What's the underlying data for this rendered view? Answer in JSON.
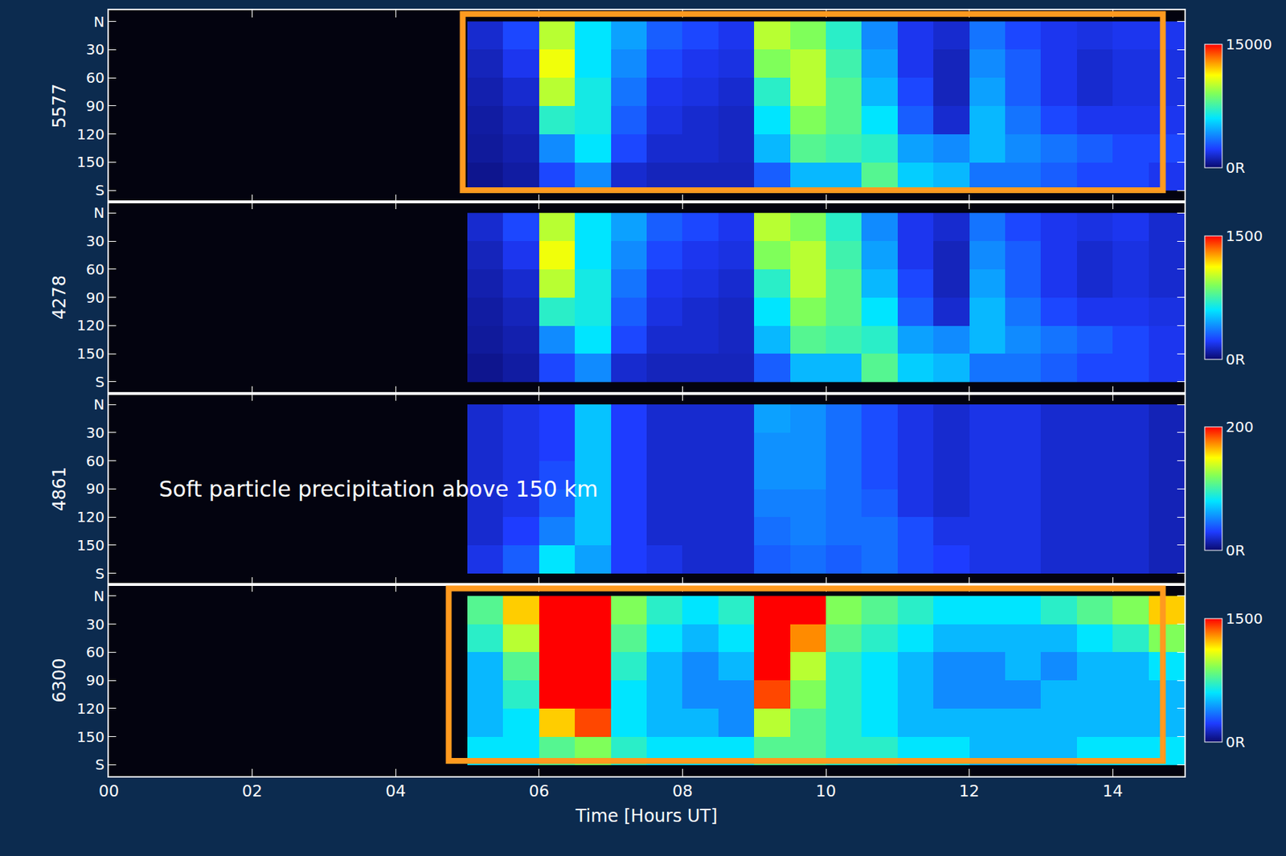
{
  "chart_data": [
    {
      "type": "heatmap",
      "ylabel": "5577",
      "tick_labels": "y",
      "xlim": [
        0,
        15
      ],
      "xticks": [
        {
          "value": 0,
          "label": "00"
        },
        {
          "value": 2,
          "label": "02"
        },
        {
          "value": 4,
          "label": "04"
        },
        {
          "value": 6,
          "label": "06"
        },
        {
          "value": 8,
          "label": "08"
        },
        10,
        12,
        14
      ],
      "ylim": [
        192,
        -12
      ],
      "yticks": [
        {
          "value": 0,
          "label": "N"
        },
        30,
        60,
        90,
        120,
        150,
        {
          "value": 180,
          "label": "S"
        }
      ],
      "x": [
        0.25,
        0.75,
        1.25,
        1.75,
        2.25,
        2.75,
        3.25,
        3.75,
        4.25,
        4.75,
        5.25,
        5.75,
        6.25,
        6.75,
        7.25,
        7.75,
        8.25,
        8.75,
        9.25,
        9.75,
        10.25,
        10.75,
        11.25,
        11.75,
        12.25,
        12.75,
        13.25,
        13.75,
        14.25,
        14.75
      ],
      "y": [
        15,
        45,
        75,
        105,
        135,
        165
      ],
      "z": [
        [
          null,
          null,
          null,
          null,
          null,
          null,
          null,
          null,
          null,
          null,
          1500,
          2500,
          10000,
          6000,
          4500,
          3000,
          2500,
          2000,
          10000,
          9000,
          7000,
          4000,
          2000,
          1500,
          3500,
          2500,
          2000,
          1800,
          2000,
          2000
        ],
        [
          null,
          null,
          null,
          null,
          null,
          null,
          null,
          null,
          null,
          null,
          1200,
          2000,
          11000,
          6000,
          4000,
          2500,
          2000,
          1800,
          9000,
          10000,
          7500,
          4500,
          2000,
          1200,
          4000,
          3000,
          2000,
          1500,
          1800,
          1800
        ],
        [
          null,
          null,
          null,
          null,
          null,
          null,
          null,
          null,
          null,
          null,
          1000,
          1500,
          10000,
          6500,
          3500,
          2000,
          1800,
          1500,
          7000,
          10000,
          8000,
          5000,
          2500,
          1200,
          4500,
          3000,
          2000,
          1500,
          1800,
          1800
        ],
        [
          null,
          null,
          null,
          null,
          null,
          null,
          null,
          null,
          null,
          null,
          800,
          1200,
          7000,
          6500,
          3000,
          1800,
          1500,
          1300,
          6000,
          9000,
          8000,
          6000,
          3000,
          1500,
          5000,
          3500,
          2500,
          2000,
          2000,
          2000
        ],
        [
          null,
          null,
          null,
          null,
          null,
          null,
          null,
          null,
          null,
          null,
          700,
          1000,
          4000,
          6000,
          2500,
          1500,
          1500,
          1300,
          5000,
          8000,
          7500,
          7000,
          4500,
          4000,
          5000,
          4000,
          3500,
          3000,
          2500,
          2500
        ],
        [
          null,
          null,
          null,
          null,
          null,
          null,
          null,
          null,
          null,
          null,
          500,
          800,
          2500,
          4000,
          1500,
          1200,
          1200,
          1200,
          3000,
          5000,
          5000,
          8000,
          5500,
          5000,
          3500,
          3500,
          3000,
          2500,
          2500,
          2000
        ]
      ],
      "colorbar": {
        "range": [
          0,
          15000
        ],
        "ticks": [
          {
            "value": 0,
            "label": "0R"
          },
          15000
        ]
      }
    },
    {
      "type": "heatmap",
      "ylabel": "4278",
      "tick_labels": "y",
      "xlim": [
        0,
        15
      ],
      "xticks": [
        {
          "value": 0,
          "label": "00"
        },
        {
          "value": 2,
          "label": "02"
        },
        {
          "value": 4,
          "label": "04"
        },
        {
          "value": 6,
          "label": "06"
        },
        {
          "value": 8,
          "label": "08"
        },
        10,
        12,
        14
      ],
      "ylim": [
        192,
        -12
      ],
      "yticks": [
        {
          "value": 0,
          "label": "N"
        },
        30,
        60,
        90,
        120,
        150,
        {
          "value": 180,
          "label": "S"
        }
      ],
      "x": [
        0.25,
        0.75,
        1.25,
        1.75,
        2.25,
        2.75,
        3.25,
        3.75,
        4.25,
        4.75,
        5.25,
        5.75,
        6.25,
        6.75,
        7.25,
        7.75,
        8.25,
        8.75,
        9.25,
        9.75,
        10.25,
        10.75,
        11.25,
        11.75,
        12.25,
        12.75,
        13.25,
        13.75,
        14.25,
        14.75
      ],
      "y": [
        15,
        45,
        75,
        105,
        135,
        165
      ],
      "z": [
        [
          null,
          null,
          null,
          null,
          null,
          null,
          null,
          null,
          null,
          null,
          150,
          250,
          1000,
          600,
          450,
          300,
          250,
          200,
          1000,
          900,
          700,
          400,
          200,
          150,
          350,
          250,
          200,
          180,
          200,
          150
        ],
        [
          null,
          null,
          null,
          null,
          null,
          null,
          null,
          null,
          null,
          null,
          120,
          200,
          1100,
          600,
          400,
          250,
          200,
          180,
          900,
          1000,
          750,
          450,
          200,
          120,
          400,
          300,
          200,
          150,
          180,
          150
        ],
        [
          null,
          null,
          null,
          null,
          null,
          null,
          null,
          null,
          null,
          null,
          100,
          150,
          1000,
          650,
          350,
          200,
          180,
          150,
          700,
          1000,
          800,
          500,
          250,
          120,
          450,
          300,
          200,
          150,
          180,
          150
        ],
        [
          null,
          null,
          null,
          null,
          null,
          null,
          null,
          null,
          null,
          null,
          80,
          120,
          700,
          650,
          300,
          180,
          150,
          130,
          600,
          900,
          800,
          600,
          300,
          150,
          500,
          350,
          250,
          200,
          200,
          180
        ],
        [
          null,
          null,
          null,
          null,
          null,
          null,
          null,
          null,
          null,
          null,
          70,
          100,
          400,
          600,
          250,
          150,
          150,
          130,
          500,
          800,
          750,
          700,
          450,
          400,
          500,
          400,
          350,
          300,
          250,
          200
        ],
        [
          null,
          null,
          null,
          null,
          null,
          null,
          null,
          null,
          null,
          null,
          50,
          80,
          250,
          400,
          150,
          120,
          120,
          120,
          300,
          500,
          500,
          800,
          550,
          500,
          350,
          350,
          300,
          250,
          250,
          200
        ]
      ],
      "colorbar": {
        "range": [
          0,
          1500
        ],
        "ticks": [
          {
            "value": 0,
            "label": "0R"
          },
          1500
        ]
      }
    },
    {
      "type": "heatmap",
      "ylabel": "4861",
      "tick_labels": "y",
      "annotations": [
        "Soft particle precipitation above 150 km"
      ],
      "xlim": [
        0,
        15
      ],
      "xticks": [
        {
          "value": 0,
          "label": "00"
        },
        {
          "value": 2,
          "label": "02"
        },
        {
          "value": 4,
          "label": "04"
        },
        {
          "value": 6,
          "label": "06"
        },
        {
          "value": 8,
          "label": "08"
        },
        10,
        12,
        14
      ],
      "ylim": [
        192,
        -12
      ],
      "yticks": [
        {
          "value": 0,
          "label": "N"
        },
        30,
        60,
        90,
        120,
        150,
        {
          "value": 180,
          "label": "S"
        }
      ],
      "x": [
        0.25,
        0.75,
        1.25,
        1.75,
        2.25,
        2.75,
        3.25,
        3.75,
        4.25,
        4.75,
        5.25,
        5.75,
        6.25,
        6.75,
        7.25,
        7.75,
        8.25,
        8.75,
        9.25,
        9.75,
        10.25,
        10.75,
        11.25,
        11.75,
        12.25,
        12.75,
        13.25,
        13.75,
        14.25,
        14.75
      ],
      "y": [
        15,
        45,
        75,
        105,
        135,
        165
      ],
      "z": [
        [
          null,
          null,
          null,
          null,
          null,
          null,
          null,
          null,
          null,
          null,
          20,
          25,
          30,
          70,
          30,
          20,
          20,
          20,
          60,
          55,
          45,
          35,
          25,
          20,
          25,
          25,
          20,
          20,
          20,
          15
        ],
        [
          null,
          null,
          null,
          null,
          null,
          null,
          null,
          null,
          null,
          null,
          20,
          25,
          30,
          70,
          30,
          20,
          20,
          20,
          55,
          55,
          45,
          35,
          25,
          20,
          25,
          25,
          20,
          20,
          20,
          15
        ],
        [
          null,
          null,
          null,
          null,
          null,
          null,
          null,
          null,
          null,
          null,
          20,
          25,
          35,
          70,
          30,
          20,
          20,
          20,
          55,
          55,
          45,
          35,
          25,
          20,
          25,
          25,
          20,
          20,
          20,
          15
        ],
        [
          null,
          null,
          null,
          null,
          null,
          null,
          null,
          null,
          null,
          null,
          20,
          25,
          40,
          70,
          30,
          20,
          20,
          20,
          50,
          50,
          45,
          40,
          25,
          20,
          25,
          25,
          20,
          20,
          20,
          15
        ],
        [
          null,
          null,
          null,
          null,
          null,
          null,
          null,
          null,
          null,
          null,
          20,
          30,
          50,
          70,
          30,
          20,
          20,
          20,
          45,
          50,
          45,
          45,
          35,
          25,
          25,
          25,
          20,
          20,
          20,
          15
        ],
        [
          null,
          null,
          null,
          null,
          null,
          null,
          null,
          null,
          null,
          null,
          25,
          40,
          80,
          60,
          30,
          25,
          20,
          20,
          40,
          45,
          40,
          45,
          35,
          30,
          25,
          25,
          20,
          20,
          20,
          15
        ]
      ],
      "colorbar": {
        "range": [
          0,
          200
        ],
        "ticks": [
          {
            "value": 0,
            "label": "0R"
          },
          200
        ]
      }
    },
    {
      "type": "heatmap",
      "ylabel": "6300",
      "xlabel": "Time [Hours UT]",
      "xlim": [
        0,
        15
      ],
      "xticks": [
        {
          "value": 0,
          "label": "00"
        },
        {
          "value": 2,
          "label": "02"
        },
        {
          "value": 4,
          "label": "04"
        },
        {
          "value": 6,
          "label": "06"
        },
        {
          "value": 8,
          "label": "08"
        },
        10,
        12,
        14
      ],
      "ylim": [
        192,
        -12
      ],
      "yticks": [
        {
          "value": 0,
          "label": "N"
        },
        30,
        60,
        90,
        120,
        150,
        {
          "value": 180,
          "label": "S"
        }
      ],
      "x": [
        0.25,
        0.75,
        1.25,
        1.75,
        2.25,
        2.75,
        3.25,
        3.75,
        4.25,
        4.75,
        5.25,
        5.75,
        6.25,
        6.75,
        7.25,
        7.75,
        8.25,
        8.75,
        9.25,
        9.75,
        10.25,
        10.75,
        11.25,
        11.75,
        12.25,
        12.75,
        13.25,
        13.75,
        14.25,
        14.75
      ],
      "y": [
        15,
        45,
        75,
        105,
        135,
        165
      ],
      "z": [
        [
          null,
          null,
          null,
          null,
          null,
          null,
          null,
          null,
          null,
          null,
          800,
          1200,
          1600,
          1500,
          900,
          700,
          600,
          700,
          1600,
          1500,
          900,
          800,
          700,
          600,
          600,
          600,
          700,
          800,
          900,
          1200
        ],
        [
          null,
          null,
          null,
          null,
          null,
          null,
          null,
          null,
          null,
          null,
          700,
          1000,
          1600,
          1600,
          800,
          600,
          500,
          600,
          1600,
          1300,
          800,
          700,
          600,
          500,
          500,
          500,
          500,
          600,
          700,
          900
        ],
        [
          null,
          null,
          null,
          null,
          null,
          null,
          null,
          null,
          null,
          null,
          500,
          800,
          1600,
          1600,
          700,
          500,
          400,
          500,
          1600,
          1000,
          700,
          600,
          500,
          400,
          400,
          500,
          400,
          500,
          500,
          600
        ],
        [
          null,
          null,
          null,
          null,
          null,
          null,
          null,
          null,
          null,
          null,
          500,
          700,
          1500,
          1600,
          600,
          500,
          400,
          400,
          1400,
          900,
          700,
          600,
          500,
          400,
          400,
          400,
          500,
          500,
          500,
          500
        ],
        [
          null,
          null,
          null,
          null,
          null,
          null,
          null,
          null,
          null,
          null,
          500,
          600,
          1200,
          1400,
          600,
          500,
          500,
          400,
          1000,
          800,
          700,
          600,
          500,
          500,
          500,
          500,
          500,
          500,
          500,
          500
        ],
        [
          null,
          null,
          null,
          null,
          null,
          null,
          null,
          null,
          null,
          null,
          600,
          600,
          800,
          900,
          700,
          600,
          600,
          600,
          800,
          800,
          700,
          700,
          600,
          600,
          500,
          500,
          500,
          600,
          600,
          600
        ]
      ],
      "colorbar": {
        "range": [
          0,
          1500
        ],
        "ticks": [
          {
            "value": 0,
            "label": "0R"
          },
          1500
        ]
      }
    }
  ]
}
